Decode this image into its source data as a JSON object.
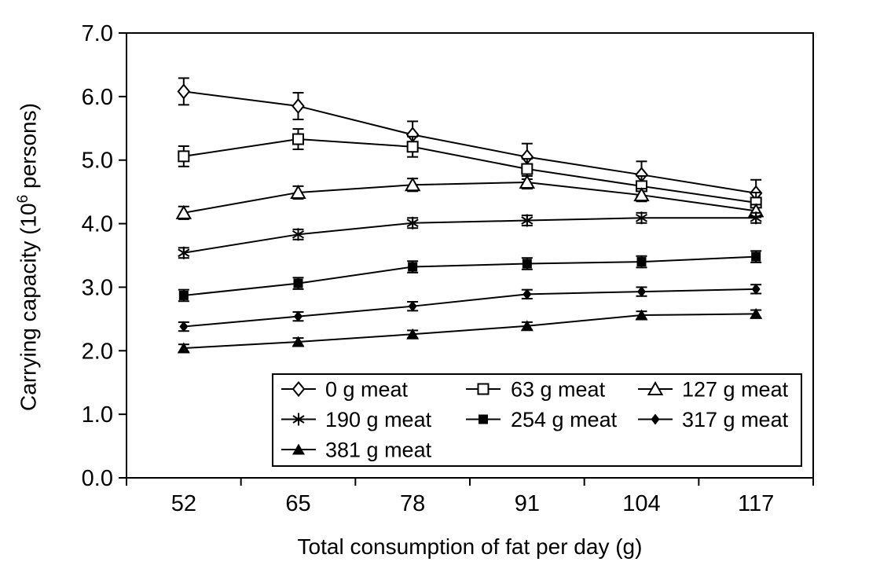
{
  "figure": {
    "background_color": "#ffffff",
    "foreground_color": "#000000",
    "x_axis": {
      "title": "Total consumption of fat per day (g)",
      "tick_labels": [
        "52",
        "65",
        "78",
        "91",
        "104",
        "117"
      ]
    },
    "y_axis": {
      "title_prefix": "Carrying capacity (10",
      "title_sup": "6",
      "title_suffix": " persons)",
      "tick_labels": [
        "0.0",
        "1.0",
        "2.0",
        "3.0",
        "4.0",
        "5.0",
        "6.0",
        "7.0"
      ]
    }
  },
  "chart_data": {
    "type": "line",
    "title": "",
    "xlabel": "Total consumption of fat per day (g)",
    "ylabel": "Carrying capacity (10^6 persons)",
    "x": [
      52,
      65,
      78,
      91,
      104,
      117
    ],
    "ylim": [
      0,
      7
    ],
    "y_tick_step": 1.0,
    "grid": false,
    "error_bars": true,
    "legend_position": "inside-bottom-boxed",
    "legend_columns": 3,
    "series": [
      {
        "name": "0 g meat",
        "marker": "open-diamond",
        "values": [
          6.08,
          5.85,
          5.4,
          5.05,
          4.77,
          4.48
        ],
        "error": 0.21
      },
      {
        "name": "63 g meat",
        "marker": "open-square",
        "values": [
          5.06,
          5.33,
          5.21,
          4.86,
          4.59,
          4.33
        ],
        "error": 0.16
      },
      {
        "name": "127 g meat",
        "marker": "open-triangle",
        "values": [
          4.17,
          4.49,
          4.61,
          4.65,
          4.45,
          4.2
        ],
        "error": 0.1
      },
      {
        "name": "190 g meat",
        "marker": "asterisk",
        "values": [
          3.54,
          3.83,
          4.01,
          4.05,
          4.09,
          4.09
        ],
        "error": 0.08
      },
      {
        "name": "254 g meat",
        "marker": "filled-square",
        "values": [
          2.87,
          3.06,
          3.32,
          3.37,
          3.4,
          3.48
        ],
        "error": 0.09
      },
      {
        "name": "317 g meat",
        "marker": "filled-diamond",
        "values": [
          2.38,
          2.54,
          2.7,
          2.89,
          2.93,
          2.97
        ],
        "error": 0.07
      },
      {
        "name": "381 g meat",
        "marker": "filled-triangle",
        "values": [
          2.04,
          2.14,
          2.26,
          2.39,
          2.56,
          2.58
        ],
        "error": 0.06
      }
    ]
  }
}
